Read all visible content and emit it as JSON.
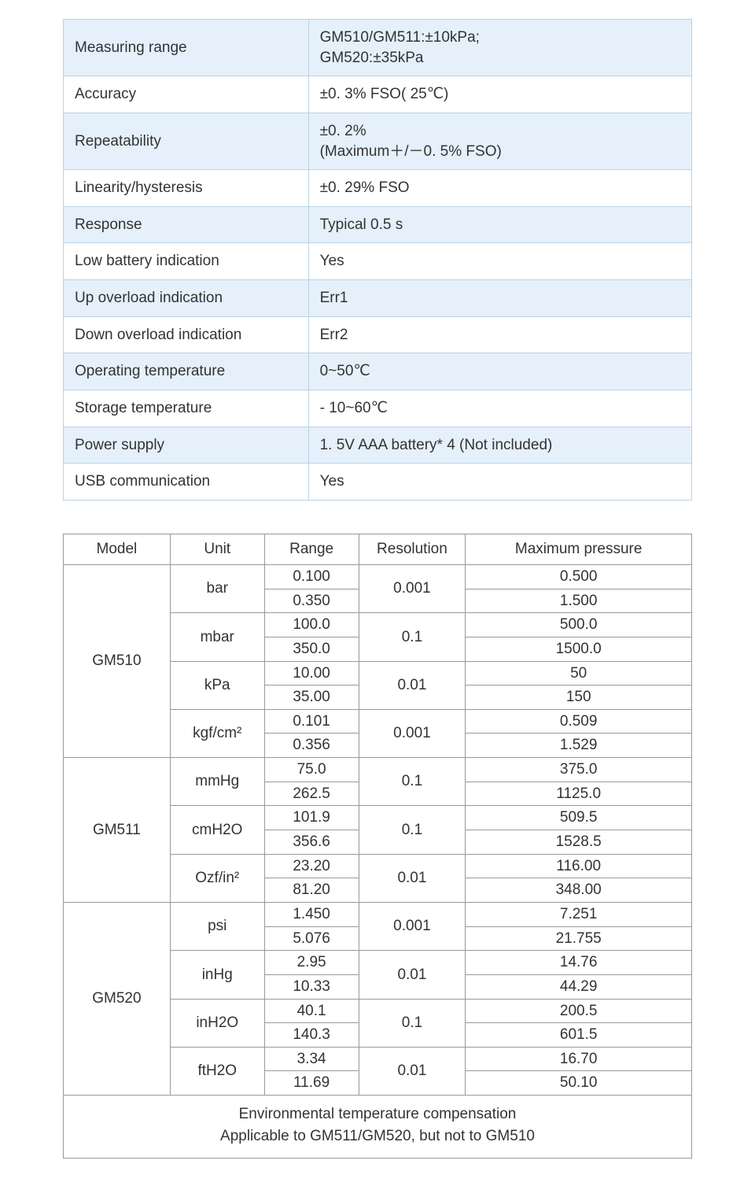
{
  "colors": {
    "specs_odd_bg": "#e5f0fb",
    "specs_even_bg": "#ffffff",
    "specs_border": "#b8d3e6",
    "units_border": "#999999",
    "text": "#333333",
    "page_bg": "#ffffff"
  },
  "fonts": {
    "family": "Segoe UI",
    "size_pt": 14
  },
  "specs": {
    "rows": [
      {
        "label": "Measuring range",
        "value": "GM510/GM511:±10kPa;\nGM520:±35kPa"
      },
      {
        "label": "Accuracy",
        "value": "±0. 3% FSO( 25℃)"
      },
      {
        "label": "Repeatability",
        "value": "±0. 2%\n(Maximum＋/－0. 5% FSO)"
      },
      {
        "label": "Linearity/hysteresis",
        "value": "±0. 29% FSO"
      },
      {
        "label": "Response",
        "value": "Typical 0.5 s"
      },
      {
        "label": "Low battery indication",
        "value": "Yes"
      },
      {
        "label": "Up overload indication",
        "value": "Err1"
      },
      {
        "label": "Down overload indication",
        "value": "Err2"
      },
      {
        "label": "Operating temperature",
        "value": "0~50℃"
      },
      {
        "label": "Storage temperature",
        "value": "- 10~60℃"
      },
      {
        "label": "Power supply",
        "value": "1. 5V AAA battery* 4 (Not included)"
      },
      {
        "label": "USB communication",
        "value": "Yes"
      }
    ]
  },
  "units_table": {
    "headers": {
      "model": "Model",
      "unit": "Unit",
      "range": "Range",
      "resolution": "Resolution",
      "max": "Maximum pressure"
    },
    "models": [
      "GM510",
      "GM511",
      "GM520"
    ],
    "units": [
      {
        "name": "bar",
        "resolution": "0.001",
        "rows": [
          {
            "range": "0.100",
            "max": "0.500"
          },
          {
            "range": "0.350",
            "max": "1.500"
          }
        ]
      },
      {
        "name": "mbar",
        "resolution": "0.1",
        "rows": [
          {
            "range": "100.0",
            "max": "500.0"
          },
          {
            "range": "350.0",
            "max": "1500.0"
          }
        ]
      },
      {
        "name": "kPa",
        "resolution": "0.01",
        "rows": [
          {
            "range": "10.00",
            "max": "50"
          },
          {
            "range": "35.00",
            "max": "150"
          }
        ]
      },
      {
        "name": "kgf/cm²",
        "resolution": "0.001",
        "rows": [
          {
            "range": "0.101",
            "max": "0.509"
          },
          {
            "range": "0.356",
            "max": "1.529"
          }
        ]
      },
      {
        "name": "mmHg",
        "resolution": "0.1",
        "rows": [
          {
            "range": "75.0",
            "max": "375.0"
          },
          {
            "range": "262.5",
            "max": "1125.0"
          }
        ]
      },
      {
        "name": "cmH2O",
        "resolution": "0.1",
        "rows": [
          {
            "range": "101.9",
            "max": "509.5"
          },
          {
            "range": "356.6",
            "max": "1528.5"
          }
        ]
      },
      {
        "name": "Ozf/in²",
        "resolution": "0.01",
        "rows": [
          {
            "range": "23.20",
            "max": "116.00"
          },
          {
            "range": "81.20",
            "max": "348.00"
          }
        ]
      },
      {
        "name": "psi",
        "resolution": "0.001",
        "rows": [
          {
            "range": "1.450",
            "max": "7.251"
          },
          {
            "range": "5.076",
            "max": "21.755"
          }
        ]
      },
      {
        "name": "inHg",
        "resolution": "0.01",
        "rows": [
          {
            "range": "2.95",
            "max": "14.76"
          },
          {
            "range": "10.33",
            "max": "44.29"
          }
        ]
      },
      {
        "name": "inH2O",
        "resolution": "0.1",
        "rows": [
          {
            "range": "40.1",
            "max": "200.5"
          },
          {
            "range": "140.3",
            "max": "601.5"
          }
        ]
      },
      {
        "name": "ftH2O",
        "resolution": "0.01",
        "rows": [
          {
            "range": "3.34",
            "max": "16.70"
          },
          {
            "range": "11.69",
            "max": "50.10"
          }
        ]
      }
    ],
    "footer_line1": "Environmental temperature compensation",
    "footer_line2": "Applicable to GM511/GM520, but not to GM510"
  }
}
